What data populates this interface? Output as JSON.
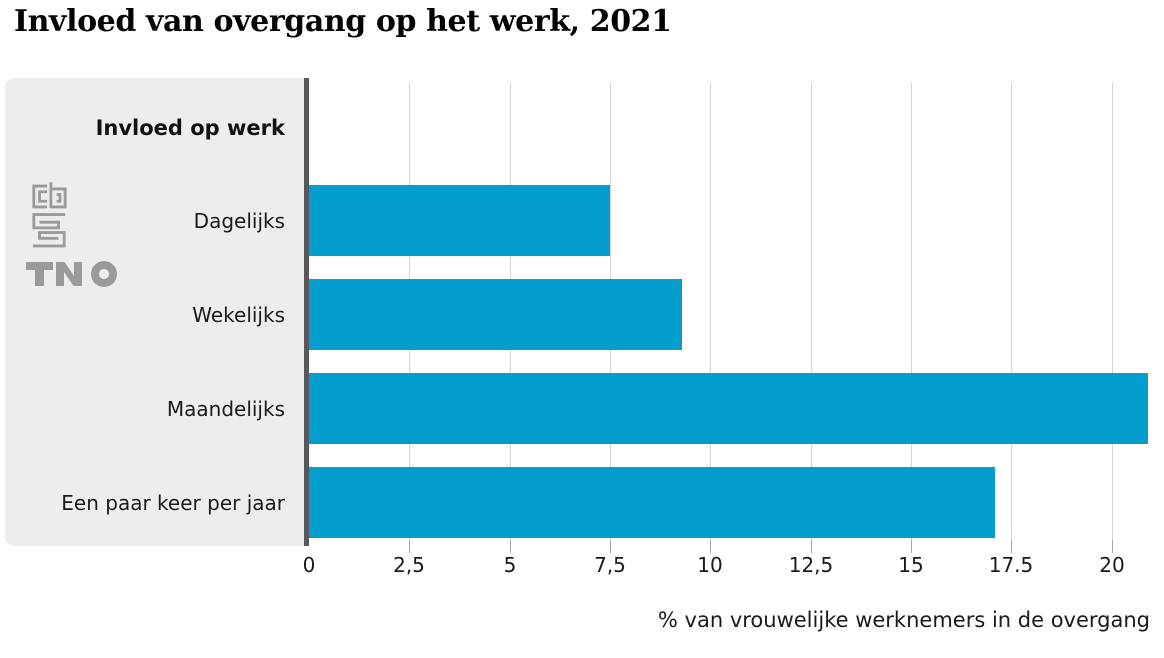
{
  "title": "Invloed van overgang op het werk, 2021",
  "sidebar": {
    "header": "Invloed op werk",
    "logos": {
      "cbs": "CBS",
      "tno": "TNO"
    }
  },
  "chart_data": {
    "type": "bar",
    "orientation": "horizontal",
    "title": "Invloed van overgang op het werk, 2021",
    "categories": [
      "Dagelijks",
      "Wekelijks",
      "Maandelijks",
      "Een paar keer per jaar"
    ],
    "values": [
      7.5,
      9.3,
      20.9,
      17.1
    ],
    "series_label": "Invloed op werk",
    "xlabel": "% van vrouwelijke werknemers in de overgang",
    "ylabel": "Invloed op werk",
    "xlim": [
      0,
      21.3
    ],
    "xticks": [
      0,
      2.5,
      5,
      7.5,
      10,
      12.5,
      15,
      17.5,
      20
    ],
    "xtick_labels": [
      "0",
      "2,5",
      "5",
      "7,5",
      "10",
      "12,5",
      "15",
      "17.5",
      "20"
    ],
    "grid": true,
    "legend_position": "left-panel",
    "bar_color": "#049ecc",
    "sources": [
      "CBS",
      "TNO"
    ]
  },
  "colors": {
    "bar": "#049ecc",
    "panel_bg": "#ededed",
    "axis_line": "#58585a",
    "gridline": "#d4d4d4",
    "tick": "#a6a6a6",
    "logo_gray": "#9a9a9a",
    "text": "#111111"
  }
}
